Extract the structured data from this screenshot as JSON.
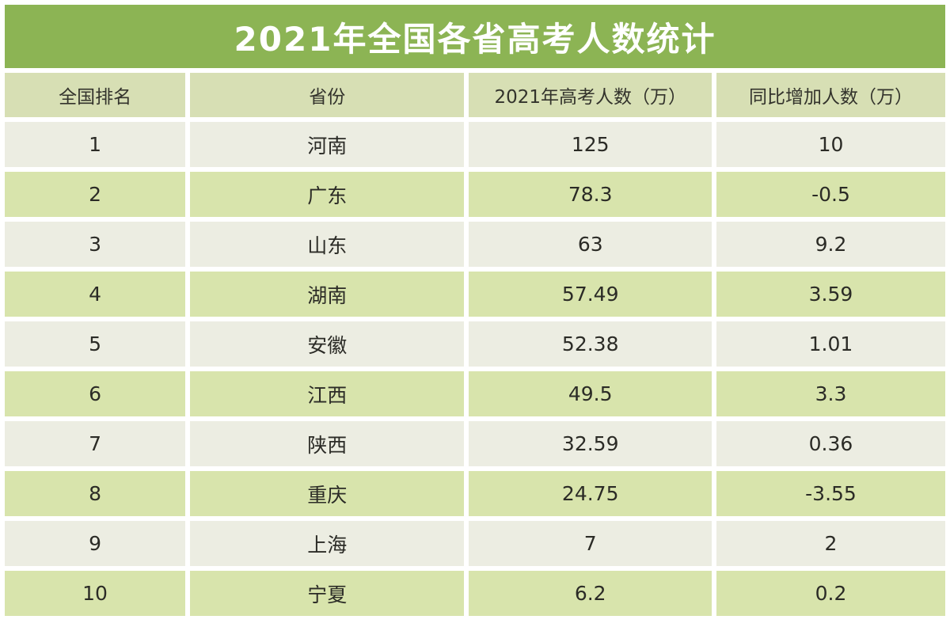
{
  "title": "2021年全国各省高考人数统计",
  "table": {
    "headers": [
      "全国排名",
      "省份",
      "2021年高考人数（万）",
      "同比增加人数（万）"
    ],
    "rows": [
      [
        "1",
        "河南",
        "125",
        "10"
      ],
      [
        "2",
        "广东",
        "78.3",
        "-0.5"
      ],
      [
        "3",
        "山东",
        "63",
        "9.2"
      ],
      [
        "4",
        "湖南",
        "57.49",
        "3.59"
      ],
      [
        "5",
        "安徽",
        "52.38",
        "1.01"
      ],
      [
        "6",
        "江西",
        "49.5",
        "3.3"
      ],
      [
        "7",
        "陕西",
        "32.59",
        "0.36"
      ],
      [
        "8",
        "重庆",
        "24.75",
        "-3.55"
      ],
      [
        "9",
        "上海",
        "7",
        "2"
      ],
      [
        "10",
        "宁夏",
        "6.2",
        "0.2"
      ]
    ]
  },
  "colors": {
    "title_background": "#8cb454",
    "header_background": "#d7dfb4",
    "row_odd_background": "#ecede2",
    "row_even_background": "#d8e4ac",
    "title_text": "#ffffff",
    "body_text": "#2b2b26",
    "gridline": "#ffffff"
  },
  "chart_data": {
    "type": "table",
    "title": "2021年全国各省高考人数统计",
    "columns": [
      "全国排名",
      "省份",
      "2021年高考人数（万）",
      "同比增加人数（万）"
    ],
    "rows": [
      [
        1,
        "河南",
        125,
        10
      ],
      [
        2,
        "广东",
        78.3,
        -0.5
      ],
      [
        3,
        "山东",
        63,
        9.2
      ],
      [
        4,
        "湖南",
        57.49,
        3.59
      ],
      [
        5,
        "安徽",
        52.38,
        1.01
      ],
      [
        6,
        "江西",
        49.5,
        3.3
      ],
      [
        7,
        "陕西",
        32.59,
        0.36
      ],
      [
        8,
        "重庆",
        24.75,
        -3.55
      ],
      [
        9,
        "上海",
        7,
        2
      ],
      [
        10,
        "宁夏",
        6.2,
        0.2
      ]
    ]
  }
}
